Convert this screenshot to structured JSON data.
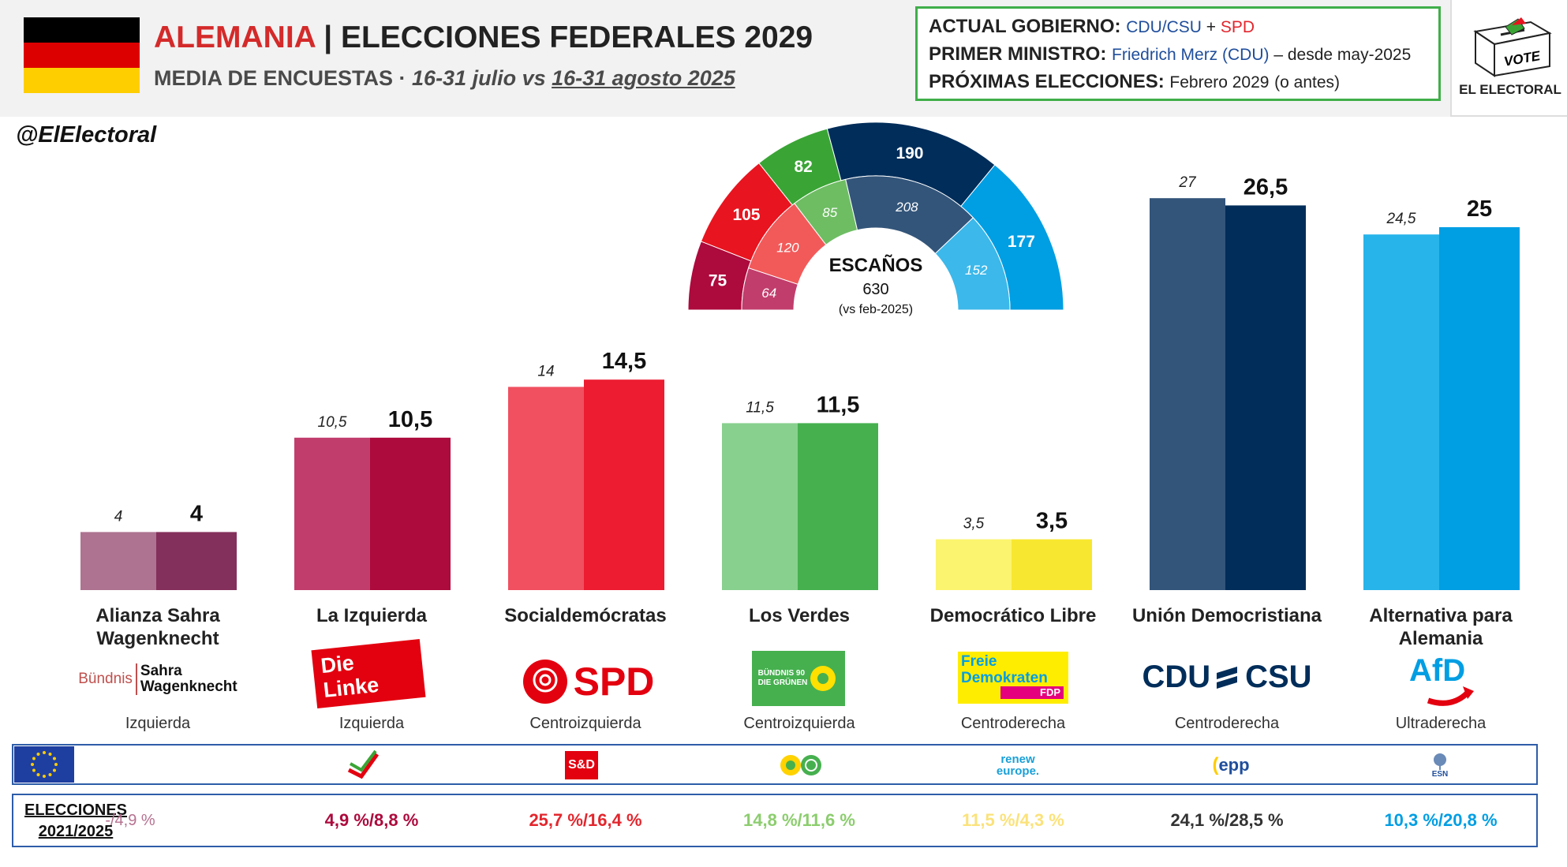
{
  "header": {
    "country": "ALEMANIA",
    "title_rest": " | ELECCIONES FEDERALES 2029",
    "subtitle_main": "MEDIA DE ENCUESTAS",
    "subtitle_sep": " · ",
    "subtitle_period_a": "16-31 julio vs ",
    "subtitle_period_b": "16-31 agosto 2025",
    "flag_colors": [
      "#000000",
      "#dd0000",
      "#ffce00"
    ]
  },
  "info": {
    "gov_label": "ACTUAL GOBIERNO:",
    "gov_a": "CDU/CSU",
    "gov_plus": " + ",
    "gov_b": "SPD",
    "pm_label": "PRIMER MINISTRO:",
    "pm_value": "Friedrich Merz (CDU)",
    "pm_since": " – desde may-2025",
    "next_label": "PRÓXIMAS ELECCIONES",
    "next_colon": ":",
    "next_value": "Febrero 2029",
    "next_note": "(o antes)"
  },
  "brand": {
    "logo_text": "EL ELECTORAL",
    "box_text": "VOTE",
    "handle": "@ElElectoral"
  },
  "chart_data": {
    "type": "bar",
    "categories": [
      "Alianza Sahra Wagenknecht",
      "La Izquierda",
      "Socialdemócratas",
      "Los Verdes",
      "Democrático Libre",
      "Unión Democristiana",
      "Alternativa para Alemania"
    ],
    "series": [
      {
        "values": [
          4,
          10.5,
          14,
          11.5,
          3.5,
          27,
          24.5
        ],
        "labels": [
          "4",
          "10,5",
          "14",
          "11,5",
          "3,5",
          "27",
          "24,5"
        ]
      },
      {
        "values": [
          4,
          10.5,
          14.5,
          11.5,
          3.5,
          26.5,
          25
        ],
        "labels": [
          "4",
          "10,5",
          "14,5",
          "11,5",
          "3,5",
          "26,5",
          "25"
        ]
      }
    ],
    "colors_prev": [
      "#ad7390",
      "#c13d6c",
      "#f05060",
      "#88d08e",
      "#fbf46e",
      "#33557a",
      "#27b4ea"
    ],
    "colors_curr": [
      "#84305c",
      "#ad0a3d",
      "#ed1c31",
      "#46b04f",
      "#f8e730",
      "#002d5a",
      "#009ee3"
    ],
    "ylim": [
      0,
      30
    ]
  },
  "seats": {
    "title": "ESCAÑOS",
    "total": "630",
    "note": "(vs feb-2025)",
    "outer": [
      {
        "value": 75,
        "label": "75",
        "color": "#ad0a3d"
      },
      {
        "value": 105,
        "label": "105",
        "color": "#e8141f"
      },
      {
        "value": 82,
        "label": "82",
        "color": "#3aa535"
      },
      {
        "value": 190,
        "label": "190",
        "color": "#002d5a"
      },
      {
        "value": 177,
        "label": "177",
        "color": "#009ee3"
      }
    ],
    "inner": [
      {
        "value": 64,
        "label": "64",
        "color": "#c13d6c"
      },
      {
        "value": 120,
        "label": "120",
        "color": "#f25a5a"
      },
      {
        "value": 85,
        "label": "85",
        "color": "#6ebd63"
      },
      {
        "value": 208,
        "label": "208",
        "color": "#33557a"
      },
      {
        "value": 152,
        "label": "152",
        "color": "#3cb8ea"
      }
    ]
  },
  "parties": [
    {
      "name": "Alianza Sahra Wagenknecht",
      "ideology": "Izquierda",
      "logo": "BSW",
      "logo_a": "Bündnis",
      "logo_b": "Sahra",
      "logo_c": "Wagenknecht",
      "eu_group": "",
      "result": "-/4,9 %",
      "result_color": "#b5718f"
    },
    {
      "name": "La Izquierda",
      "ideology": "Izquierda",
      "logo": "Die Linke",
      "eu_group": "left",
      "result": "4,9 %/8,8 %",
      "result_color": "#ad0a3d"
    },
    {
      "name": "Socialdemócratas",
      "ideology": "Centroizquierda",
      "logo": "SPD",
      "eu_group": "S&D",
      "result": "25,7 %/16,4 %",
      "result_color": "#e3262d"
    },
    {
      "name": "Los Verdes",
      "ideology": "Centroizquierda",
      "logo_a": "BÜNDNIS 90",
      "logo_b": "DIE GRÜNEN",
      "eu_group": "greens",
      "result": "14,8 %/11,6 %",
      "result_color": "#8ccd6e"
    },
    {
      "name": "Democrático Libre",
      "ideology": "Centroderecha",
      "logo_a": "Freie",
      "logo_b": "Demokraten",
      "logo_c": "FDP",
      "eu_group_a": "renew",
      "eu_group_b": "europe.",
      "result": "11,5 %/4,3 %",
      "result_color": "#fbe27a"
    },
    {
      "name": "Unión Democristiana",
      "ideology": "Centroderecha",
      "logo_a": "CDU",
      "logo_b": "CSU",
      "eu_group": "epp",
      "result": "24,1 %/28,5 %",
      "result_color": "#333333"
    },
    {
      "name": "Alternativa para Alemania",
      "ideology": "Ultraderecha",
      "logo": "AfD",
      "eu_group": "ESN",
      "result": "10,3 %/20,8 %",
      "result_color": "#009ee3"
    }
  ],
  "elections_label_a": "ELECCIONES",
  "elections_label_b": "2021/2025"
}
